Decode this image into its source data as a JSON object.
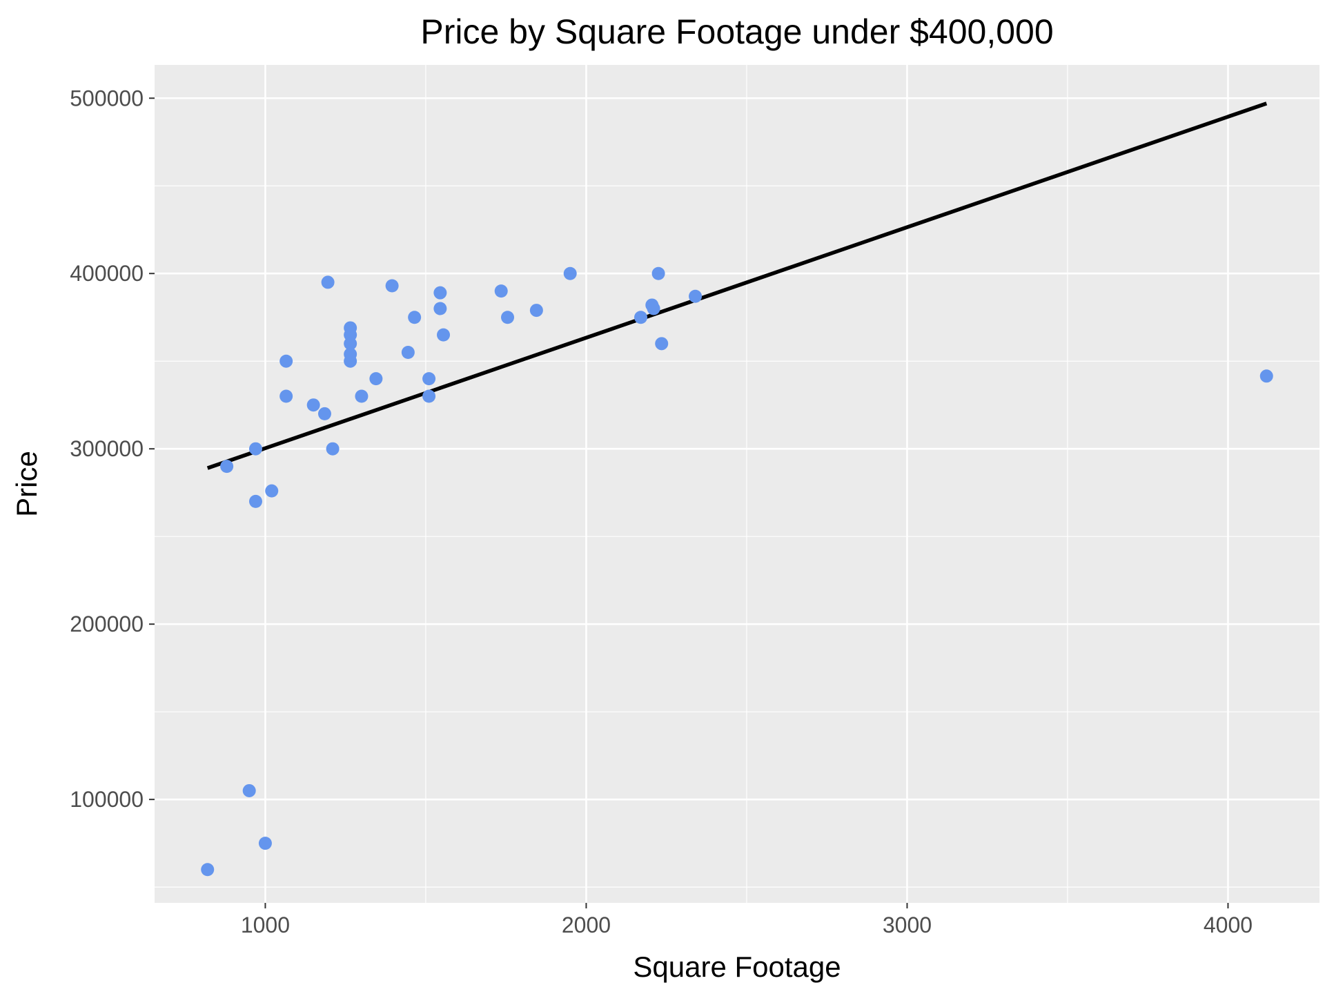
{
  "chart_data": {
    "type": "scatter",
    "title": "Price by Square Footage under $400,000",
    "xlabel": "Square Footage",
    "ylabel": "Price",
    "xlim": [
      655,
      4285
    ],
    "ylim": [
      41000,
      519000
    ],
    "x_ticks": [
      1000,
      2000,
      3000,
      4000
    ],
    "x_tick_labels": [
      "1000",
      "2000",
      "3000",
      "4000"
    ],
    "x_minor_ticks": [
      1500,
      2500,
      3500
    ],
    "y_ticks": [
      100000,
      200000,
      300000,
      400000,
      500000
    ],
    "y_tick_labels": [
      "100000",
      "200000",
      "300000",
      "400000",
      "500000"
    ],
    "y_minor_ticks": [
      50000,
      150000,
      250000,
      350000,
      450000
    ],
    "grid": true,
    "legend": "none",
    "colors": {
      "panel_background": "#EBEBEB",
      "grid": "#FFFFFF",
      "points": "#6495ED",
      "fit_line": "#000000",
      "tick_text": "#4D4D4D",
      "tick_marks": "#333333"
    },
    "series": [
      {
        "type": "scatter",
        "points": [
          {
            "x": 820,
            "y": 60000
          },
          {
            "x": 950,
            "y": 105000
          },
          {
            "x": 1000,
            "y": 75000
          },
          {
            "x": 880,
            "y": 290000
          },
          {
            "x": 970,
            "y": 300000
          },
          {
            "x": 970,
            "y": 270000
          },
          {
            "x": 1020,
            "y": 276000
          },
          {
            "x": 1065,
            "y": 330000
          },
          {
            "x": 1065,
            "y": 350000
          },
          {
            "x": 1150,
            "y": 325000
          },
          {
            "x": 1185,
            "y": 320000
          },
          {
            "x": 1195,
            "y": 395000
          },
          {
            "x": 1210,
            "y": 300000
          },
          {
            "x": 1265,
            "y": 369000
          },
          {
            "x": 1265,
            "y": 365000
          },
          {
            "x": 1265,
            "y": 360000
          },
          {
            "x": 1265,
            "y": 354000
          },
          {
            "x": 1265,
            "y": 350000
          },
          {
            "x": 1300,
            "y": 330000
          },
          {
            "x": 1345,
            "y": 340000
          },
          {
            "x": 1395,
            "y": 393000
          },
          {
            "x": 1445,
            "y": 355000
          },
          {
            "x": 1465,
            "y": 375000
          },
          {
            "x": 1510,
            "y": 340000
          },
          {
            "x": 1510,
            "y": 330000
          },
          {
            "x": 1545,
            "y": 389000
          },
          {
            "x": 1545,
            "y": 380000
          },
          {
            "x": 1555,
            "y": 365000
          },
          {
            "x": 1735,
            "y": 390000
          },
          {
            "x": 1755,
            "y": 375000
          },
          {
            "x": 1845,
            "y": 379000
          },
          {
            "x": 1950,
            "y": 400000
          },
          {
            "x": 2170,
            "y": 375000
          },
          {
            "x": 2205,
            "y": 382000
          },
          {
            "x": 2210,
            "y": 380000
          },
          {
            "x": 2225,
            "y": 400000
          },
          {
            "x": 2235,
            "y": 360000
          },
          {
            "x": 2340,
            "y": 387000
          },
          {
            "x": 4120,
            "y": 341500
          }
        ]
      },
      {
        "type": "line",
        "points": [
          {
            "x": 820,
            "y": 289000
          },
          {
            "x": 4120,
            "y": 497000
          }
        ]
      }
    ]
  }
}
